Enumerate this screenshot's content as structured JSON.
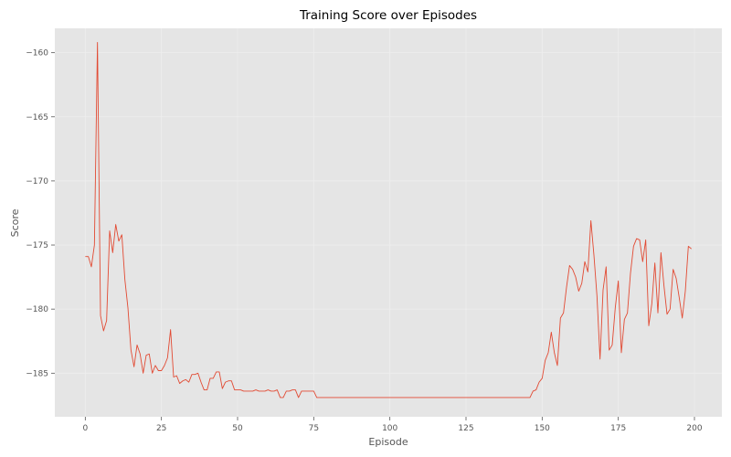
{
  "chart_data": {
    "type": "line",
    "title": "Training Score over Episodes",
    "xlabel": "Episode",
    "ylabel": "Score",
    "xlim": [
      -10,
      209
    ],
    "ylim": [
      -188.4,
      -158.1
    ],
    "xticks": [
      0,
      25,
      50,
      75,
      100,
      125,
      150,
      175,
      200
    ],
    "yticks": [
      -160,
      -165,
      -170,
      -175,
      -180,
      -185
    ],
    "xtick_labels": [
      "0",
      "25",
      "50",
      "75",
      "100",
      "125",
      "150",
      "175",
      "200"
    ],
    "ytick_labels": [
      "−160",
      "−165",
      "−170",
      "−175",
      "−180",
      "−185"
    ],
    "grid": true,
    "style": {
      "plot_background": "#e5e5e5",
      "grid_color": "#eeeeee",
      "line_color": "#e24a33"
    },
    "series": [
      {
        "values": [
          -175.9,
          -175.9,
          -176.7,
          -175.0,
          -159.2,
          -180.5,
          -181.7,
          -180.9,
          -173.9,
          -175.6,
          -173.4,
          -174.7,
          -174.2,
          -177.7,
          -179.9,
          -183.2,
          -184.5,
          -182.8,
          -183.5,
          -185.0,
          -183.6,
          -183.5,
          -185.0,
          -184.4,
          -184.8,
          -184.8,
          -184.4,
          -183.8,
          -181.6,
          -185.3,
          -185.2,
          -185.8,
          -185.6,
          -185.5,
          -185.7,
          -185.1,
          -185.1,
          -185.0,
          -185.7,
          -186.3,
          -186.3,
          -185.4,
          -185.4,
          -184.9,
          -184.9,
          -186.2,
          -185.7,
          -185.6,
          -185.6,
          -186.3,
          -186.3,
          -186.3,
          -186.4,
          -186.4,
          -186.4,
          -186.4,
          -186.3,
          -186.4,
          -186.4,
          -186.4,
          -186.3,
          -186.4,
          -186.4,
          -186.3,
          -186.9,
          -186.9,
          -186.4,
          -186.4,
          -186.3,
          -186.3,
          -186.9,
          -186.4,
          -186.4,
          -186.4,
          -186.4,
          -186.4,
          -186.9,
          -186.9,
          -186.9,
          -186.9,
          -186.9,
          -186.9,
          -186.9,
          -186.9,
          -186.9,
          -186.9,
          -186.9,
          -186.9,
          -186.9,
          -186.9,
          -186.9,
          -186.9,
          -186.9,
          -186.9,
          -186.9,
          -186.9,
          -186.9,
          -186.9,
          -186.9,
          -186.9,
          -186.9,
          -186.9,
          -186.9,
          -186.9,
          -186.9,
          -186.9,
          -186.9,
          -186.9,
          -186.9,
          -186.9,
          -186.9,
          -186.9,
          -186.9,
          -186.9,
          -186.9,
          -186.9,
          -186.9,
          -186.9,
          -186.9,
          -186.9,
          -186.9,
          -186.9,
          -186.9,
          -186.9,
          -186.9,
          -186.9,
          -186.9,
          -186.9,
          -186.9,
          -186.9,
          -186.9,
          -186.9,
          -186.9,
          -186.9,
          -186.9,
          -186.9,
          -186.9,
          -186.9,
          -186.9,
          -186.9,
          -186.9,
          -186.9,
          -186.9,
          -186.9,
          -186.9,
          -186.9,
          -186.9,
          -186.4,
          -186.3,
          -185.7,
          -185.4,
          -184.0,
          -183.4,
          -181.8,
          -183.4,
          -184.4,
          -180.7,
          -180.3,
          -178.3,
          -176.6,
          -176.9,
          -177.5,
          -178.6,
          -178.0,
          -176.3,
          -177.1,
          -173.1,
          -175.8,
          -179.0,
          -183.9,
          -178.5,
          -176.7,
          -183.2,
          -182.8,
          -179.9,
          -177.8,
          -183.4,
          -180.8,
          -180.3,
          -177.2,
          -175.1,
          -174.5,
          -174.6,
          -176.3,
          -174.6,
          -181.3,
          -179.6,
          -176.4,
          -180.3,
          -175.6,
          -178.2,
          -180.4,
          -180.0,
          -176.9,
          -177.6,
          -179.1,
          -180.7,
          -178.6,
          -175.1,
          -175.3
        ]
      }
    ]
  }
}
